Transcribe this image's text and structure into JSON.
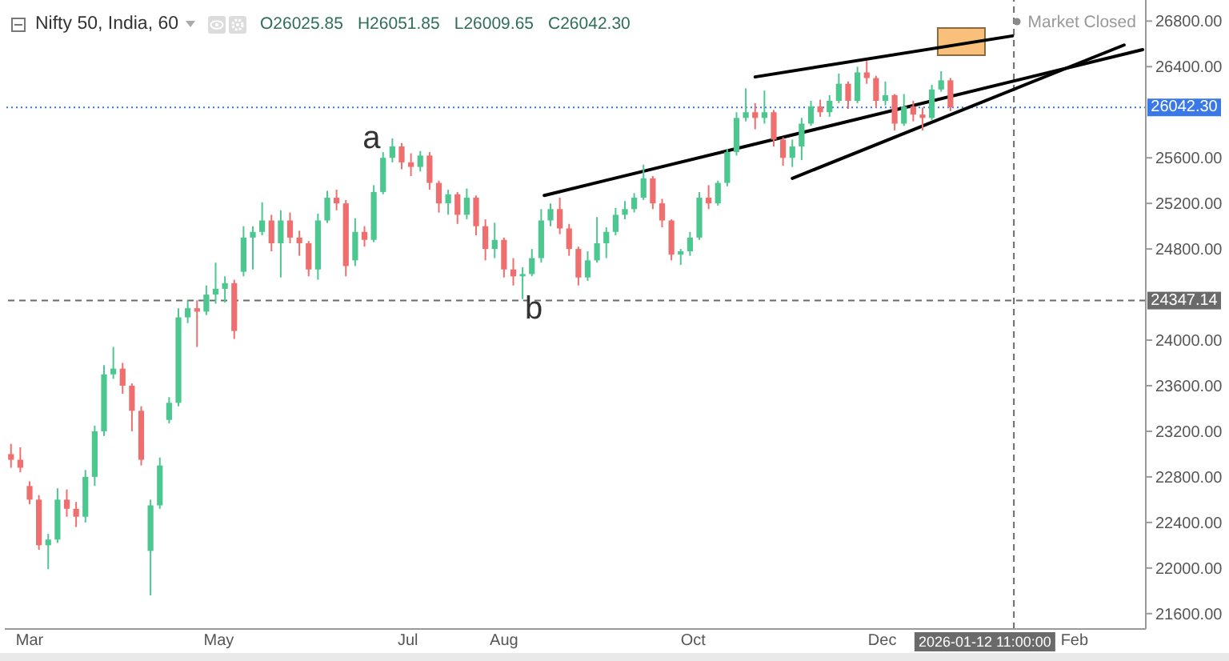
{
  "chart_data": {
    "type": "candlestick",
    "title": "Nifty 50, India, 60",
    "annotations": [
      "O26025.85",
      "H26051.85",
      "L26009.65",
      "C26042.30",
      "Market Closed",
      {
        "text": "a",
        "x": "2025-06-26",
        "y": 25770
      },
      {
        "text": "b",
        "x": "2025-08-07",
        "y": 24360
      }
    ],
    "x": [
      "2025-02-23",
      "2025-02-26",
      "2025-03-01",
      "2025-03-04",
      "2025-03-07",
      "2025-03-10",
      "2025-03-13",
      "2025-03-16",
      "2025-03-19",
      "2025-03-22",
      "2025-03-25",
      "2025-03-28",
      "2025-03-31",
      "2025-04-03",
      "2025-04-06",
      "2025-04-09",
      "2025-04-12",
      "2025-04-15",
      "2025-04-18",
      "2025-04-21",
      "2025-04-24",
      "2025-04-27",
      "2025-04-30",
      "2025-05-03",
      "2025-05-06",
      "2025-05-09",
      "2025-05-12",
      "2025-05-15",
      "2025-05-18",
      "2025-05-21",
      "2025-05-24",
      "2025-05-27",
      "2025-05-30",
      "2025-06-02",
      "2025-06-05",
      "2025-06-08",
      "2025-06-11",
      "2025-06-14",
      "2025-06-17",
      "2025-06-20",
      "2025-06-23",
      "2025-06-26",
      "2025-06-29",
      "2025-07-02",
      "2025-07-05",
      "2025-07-08",
      "2025-07-11",
      "2025-07-14",
      "2025-07-17",
      "2025-07-20",
      "2025-07-23",
      "2025-07-26",
      "2025-07-29",
      "2025-08-01",
      "2025-08-04",
      "2025-08-07",
      "2025-08-10",
      "2025-08-13",
      "2025-08-16",
      "2025-08-19",
      "2025-08-22",
      "2025-08-25",
      "2025-08-28",
      "2025-08-31",
      "2025-09-03",
      "2025-09-06",
      "2025-09-09",
      "2025-09-12",
      "2025-09-15",
      "2025-09-18",
      "2025-09-21",
      "2025-09-24",
      "2025-09-27",
      "2025-09-30",
      "2025-10-03",
      "2025-10-06",
      "2025-10-09",
      "2025-10-12",
      "2025-10-15",
      "2025-10-18",
      "2025-10-21",
      "2025-10-24",
      "2025-10-27",
      "2025-10-30",
      "2025-11-02",
      "2025-11-05",
      "2025-11-08",
      "2025-11-11",
      "2025-11-14",
      "2025-11-17",
      "2025-11-20",
      "2025-11-23",
      "2025-11-26",
      "2025-11-29",
      "2025-12-02",
      "2025-12-05",
      "2025-12-08",
      "2025-12-11",
      "2025-12-14",
      "2025-12-17",
      "2025-12-20",
      "2025-12-23"
    ],
    "ohlc": [
      [
        23000,
        23090,
        22880,
        22950
      ],
      [
        22950,
        23060,
        22840,
        22880
      ],
      [
        22720,
        22760,
        22560,
        22600
      ],
      [
        22600,
        22640,
        22160,
        22200
      ],
      [
        22200,
        22300,
        21990,
        22250
      ],
      [
        22250,
        22700,
        22220,
        22600
      ],
      [
        22600,
        22690,
        22450,
        22520
      ],
      [
        22520,
        22580,
        22360,
        22450
      ],
      [
        22450,
        22860,
        22400,
        22800
      ],
      [
        22800,
        23250,
        22720,
        23200
      ],
      [
        23200,
        23780,
        23160,
        23700
      ],
      [
        23700,
        23940,
        23660,
        23750
      ],
      [
        23750,
        23800,
        23530,
        23600
      ],
      [
        23600,
        23620,
        23200,
        23380
      ],
      [
        23380,
        23420,
        22900,
        22950
      ],
      [
        22150,
        22600,
        21760,
        22550
      ],
      [
        22550,
        22970,
        22520,
        22900
      ],
      [
        23300,
        23500,
        23270,
        23450
      ],
      [
        23450,
        24280,
        23420,
        24200
      ],
      [
        24200,
        24350,
        24150,
        24280
      ],
      [
        24280,
        24350,
        23940,
        24250
      ],
      [
        24250,
        24480,
        24220,
        24400
      ],
      [
        24400,
        24680,
        24320,
        24450
      ],
      [
        24450,
        24560,
        24330,
        24500
      ],
      [
        24500,
        24530,
        24010,
        24080
      ],
      [
        24600,
        25000,
        24560,
        24900
      ],
      [
        24900,
        25000,
        24620,
        24950
      ],
      [
        24950,
        25210,
        24920,
        25050
      ],
      [
        25050,
        25100,
        24780,
        24850
      ],
      [
        24850,
        25140,
        24550,
        25050
      ],
      [
        25050,
        25120,
        24850,
        24900
      ],
      [
        24900,
        24960,
        24740,
        24850
      ],
      [
        24850,
        24870,
        24560,
        24620
      ],
      [
        24620,
        25110,
        24530,
        25050
      ],
      [
        25050,
        25310,
        25030,
        25250
      ],
      [
        25250,
        25320,
        25140,
        25200
      ],
      [
        25200,
        25230,
        24560,
        24650
      ],
      [
        24700,
        25070,
        24650,
        24950
      ],
      [
        24950,
        25000,
        24820,
        24880
      ],
      [
        24880,
        25360,
        24860,
        25300
      ],
      [
        25300,
        25650,
        25280,
        25600
      ],
      [
        25600,
        25770,
        25560,
        25700
      ],
      [
        25700,
        25730,
        25500,
        25560
      ],
      [
        25560,
        25640,
        25440,
        25520
      ],
      [
        25520,
        25660,
        25480,
        25620
      ],
      [
        25620,
        25650,
        25320,
        25380
      ],
      [
        25380,
        25400,
        25120,
        25200
      ],
      [
        25200,
        25320,
        25100,
        25280
      ],
      [
        25280,
        25300,
        25020,
        25100
      ],
      [
        25100,
        25330,
        25060,
        25250
      ],
      [
        25250,
        25270,
        24920,
        25000
      ],
      [
        25000,
        25060,
        24700,
        24800
      ],
      [
        24800,
        25030,
        24720,
        24880
      ],
      [
        24880,
        24900,
        24550,
        24620
      ],
      [
        24620,
        24720,
        24480,
        24560
      ],
      [
        24560,
        24640,
        24360,
        24580
      ],
      [
        24580,
        24800,
        24560,
        24720
      ],
      [
        24720,
        25150,
        24680,
        25050
      ],
      [
        25050,
        25200,
        25000,
        25150
      ],
      [
        25150,
        25250,
        24930,
        24980
      ],
      [
        24980,
        25020,
        24740,
        24800
      ],
      [
        24800,
        24820,
        24480,
        24550
      ],
      [
        24550,
        24780,
        24520,
        24700
      ],
      [
        24700,
        25080,
        24680,
        24850
      ],
      [
        24850,
        24990,
        24720,
        24950
      ],
      [
        24950,
        25160,
        24920,
        25100
      ],
      [
        25100,
        25220,
        25060,
        25150
      ],
      [
        25150,
        25290,
        25120,
        25250
      ],
      [
        25250,
        25540,
        25230,
        25420
      ],
      [
        25420,
        25440,
        25150,
        25200
      ],
      [
        25200,
        25240,
        24990,
        25050
      ],
      [
        25050,
        25060,
        24700,
        24750
      ],
      [
        24750,
        24800,
        24660,
        24780
      ],
      [
        24780,
        24950,
        24740,
        24900
      ],
      [
        24900,
        25300,
        24880,
        25250
      ],
      [
        25250,
        25360,
        25150,
        25200
      ],
      [
        25200,
        25400,
        25180,
        25380
      ],
      [
        25380,
        25680,
        25350,
        25650
      ],
      [
        25650,
        26000,
        25620,
        25950
      ],
      [
        25950,
        26210,
        25920,
        26000
      ],
      [
        26000,
        26080,
        25850,
        25950
      ],
      [
        25950,
        26190,
        25900,
        26000
      ],
      [
        26000,
        26020,
        25700,
        25760
      ],
      [
        25760,
        25780,
        25530,
        25600
      ],
      [
        25600,
        25760,
        25520,
        25700
      ],
      [
        25700,
        25950,
        25580,
        25900
      ],
      [
        25900,
        26100,
        25880,
        26050
      ],
      [
        26050,
        26110,
        25960,
        26000
      ],
      [
        26000,
        26150,
        25960,
        26100
      ],
      [
        26100,
        26340,
        26080,
        26250
      ],
      [
        26250,
        26270,
        26030,
        26100
      ],
      [
        26100,
        26400,
        26080,
        26350
      ],
      [
        26350,
        26450,
        26250,
        26300
      ],
      [
        26300,
        26320,
        26040,
        26100
      ],
      [
        26100,
        26270,
        26060,
        26150
      ],
      [
        26150,
        26160,
        25840,
        25900
      ],
      [
        25900,
        26160,
        25880,
        26050
      ],
      [
        26050,
        26100,
        25920,
        25980
      ],
      [
        25980,
        26040,
        25840,
        25950
      ],
      [
        25950,
        26240,
        25930,
        26200
      ],
      [
        26200,
        26360,
        26180,
        26280
      ],
      [
        26280,
        26300,
        26010,
        26042.3
      ]
    ],
    "colors": [
      "#ef6f6f",
      "#ef6f6f",
      "#ef6f6f",
      "#ef6f6f",
      "#4cc790",
      "#4cc790",
      "#ef6f6f",
      "#ef6f6f",
      "#4cc790",
      "#4cc790",
      "#4cc790",
      "#4cc790",
      "#ef6f6f",
      "#ef6f6f",
      "#ef6f6f",
      "#4cc790",
      "#4cc790",
      "#4cc790",
      "#4cc790",
      "#4cc790",
      "#ef6f6f",
      "#4cc790",
      "#4cc790",
      "#4cc790",
      "#ef6f6f",
      "#4cc790",
      "#4cc790",
      "#4cc790",
      "#ef6f6f",
      "#4cc790",
      "#ef6f6f",
      "#ef6f6f",
      "#ef6f6f",
      "#4cc790",
      "#4cc790",
      "#ef6f6f",
      "#ef6f6f",
      "#4cc790",
      "#ef6f6f",
      "#4cc790",
      "#4cc790",
      "#4cc790",
      "#ef6f6f",
      "#ef6f6f",
      "#4cc790",
      "#ef6f6f",
      "#ef6f6f",
      "#4cc790",
      "#ef6f6f",
      "#4cc790",
      "#ef6f6f",
      "#ef6f6f",
      "#4cc790",
      "#ef6f6f",
      "#ef6f6f",
      "#4cc790",
      "#4cc790",
      "#4cc790",
      "#4cc790",
      "#ef6f6f",
      "#ef6f6f",
      "#ef6f6f",
      "#4cc790",
      "#4cc790",
      "#4cc790",
      "#4cc790",
      "#4cc790",
      "#4cc790",
      "#4cc790",
      "#ef6f6f",
      "#ef6f6f",
      "#ef6f6f",
      "#4cc790",
      "#4cc790",
      "#4cc790",
      "#ef6f6f",
      "#4cc790",
      "#4cc790",
      "#4cc790",
      "#4cc790",
      "#ef6f6f",
      "#4cc790",
      "#ef6f6f",
      "#ef6f6f",
      "#4cc790",
      "#4cc790",
      "#4cc790",
      "#ef6f6f",
      "#4cc790",
      "#4cc790",
      "#ef6f6f",
      "#4cc790",
      "#ef6f6f",
      "#ef6f6f",
      "#4cc790",
      "#ef6f6f",
      "#4cc790",
      "#ef6f6f",
      "#ef6f6f",
      "#4cc790",
      "#4cc790",
      "#ef6f6f"
    ],
    "series": [
      {
        "type": "line",
        "color": "#000000",
        "x": [
          "2025-10-21",
          "2026-01-12"
        ],
        "values": [
          26310,
          26670
        ]
      },
      {
        "type": "line",
        "color": "#000000",
        "x": [
          "2025-08-14",
          "2026-02-23"
        ],
        "values": [
          25270,
          26550
        ]
      },
      {
        "type": "line",
        "color": "#000000",
        "x": [
          "2025-11-02",
          "2026-02-17"
        ],
        "values": [
          25420,
          26590
        ]
      }
    ],
    "xlim": [
      "2025-02-21",
      "2026-02-24"
    ],
    "xticks": [
      {
        "value": "2025-03-01",
        "label": "Mar"
      },
      {
        "value": "2025-05-01",
        "label": "May"
      },
      {
        "value": "2025-07-01",
        "label": "Jul"
      },
      {
        "value": "2025-08-01",
        "label": "Aug"
      },
      {
        "value": "2025-10-01",
        "label": "Oct"
      },
      {
        "value": "2025-12-01",
        "label": "Dec"
      },
      {
        "value": "2026-02-01",
        "label": "Feb"
      }
    ],
    "ylim": [
      21465,
      26985
    ],
    "yticks": [
      {
        "value": 21600,
        "label": "21600.00"
      },
      {
        "value": 22000,
        "label": "22000.00"
      },
      {
        "value": 22400,
        "label": "22400.00"
      },
      {
        "value": 22800,
        "label": "22800.00"
      },
      {
        "value": 23200,
        "label": "23200.00"
      },
      {
        "value": 23600,
        "label": "23600.00"
      },
      {
        "value": 24000,
        "label": "24000.00"
      },
      {
        "value": 24800,
        "label": "24800.00"
      },
      {
        "value": 25200,
        "label": "25200.00"
      },
      {
        "value": 25600,
        "label": "25600.00"
      },
      {
        "value": 26400,
        "label": "26400.00"
      },
      {
        "value": 26800,
        "label": "26800.00"
      }
    ],
    "ref_lines": [
      {
        "axis": "y",
        "value": 26042.3,
        "label": "26042.30",
        "color": "#3b78e7",
        "line_style": "dotted"
      },
      {
        "axis": "y",
        "value": 24347.14,
        "label": "24347.14",
        "color": "#6a6a6a",
        "line_style": "dashed"
      },
      {
        "axis": "x",
        "value": "2026-01-12T11:00",
        "label": "2026-01-12 11:00:00",
        "color": "#6a6a6a",
        "line_style": "dashed"
      }
    ]
  }
}
